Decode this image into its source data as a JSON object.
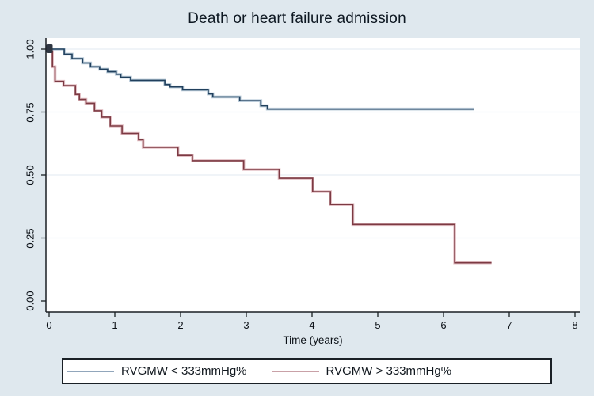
{
  "title": "Death or heart failure admission",
  "axes": {
    "x_label": "Time (years)",
    "x_tick_labels": [
      "0",
      "1",
      "2",
      "3",
      "4",
      "5",
      "6",
      "7",
      "8"
    ],
    "y_tick_labels": [
      "0.00",
      "0.25",
      "0.50",
      "0.75",
      "1.00"
    ]
  },
  "legend": {
    "items": [
      {
        "label": "RVGMW < 333mmHg%",
        "swatch_color": "#91a6bb"
      },
      {
        "label": "RVGMW > 333mmHg%",
        "swatch_color": "#c9a1a7"
      }
    ]
  },
  "colors": {
    "background": "#dfe8ee",
    "plot_background": "#ffffff",
    "gridline": "#e8eef3",
    "axis": "#1a1f24",
    "series_low_core": "#21405d",
    "series_low_halo": "#b4c6d6",
    "series_high_core": "#7c3a43",
    "series_high_halo": "#e0b9bf",
    "start_marker": "#2f3642"
  },
  "chart_data": {
    "type": "line",
    "subtype": "kaplan-meier-step",
    "title": "Death or heart failure admission",
    "xlabel": "Time (years)",
    "ylabel": "",
    "xlim": [
      0,
      8
    ],
    "ylim": [
      0.0,
      1.0
    ],
    "x_ticks": [
      0,
      1,
      2,
      3,
      4,
      5,
      6,
      7,
      8
    ],
    "y_ticks": [
      0.0,
      0.25,
      0.5,
      0.75,
      1.0
    ],
    "grid": "horizontal-major",
    "legend_position": "bottom",
    "series": [
      {
        "name": "RVGMW < 333mmHg%",
        "color_core": "#21405d",
        "color_halo": "#b4c6d6",
        "end_time": 6.47,
        "points": [
          [
            0.0,
            1.0
          ],
          [
            0.23,
            0.98
          ],
          [
            0.35,
            0.962
          ],
          [
            0.51,
            0.945
          ],
          [
            0.63,
            0.93
          ],
          [
            0.77,
            0.92
          ],
          [
            0.89,
            0.91
          ],
          [
            1.02,
            0.9
          ],
          [
            1.09,
            0.888
          ],
          [
            1.24,
            0.876
          ],
          [
            1.76,
            0.859
          ],
          [
            1.84,
            0.85
          ],
          [
            2.03,
            0.838
          ],
          [
            2.42,
            0.822
          ],
          [
            2.49,
            0.81
          ],
          [
            2.9,
            0.795
          ],
          [
            3.22,
            0.775
          ],
          [
            3.32,
            0.762
          ]
        ]
      },
      {
        "name": "RVGMW > 333mmHg%",
        "color_core": "#7c3a43",
        "color_halo": "#e0b9bf",
        "end_time": 6.73,
        "points": [
          [
            0.0,
            1.0
          ],
          [
            0.05,
            0.93
          ],
          [
            0.09,
            0.872
          ],
          [
            0.22,
            0.855
          ],
          [
            0.4,
            0.82
          ],
          [
            0.46,
            0.8
          ],
          [
            0.56,
            0.785
          ],
          [
            0.69,
            0.755
          ],
          [
            0.8,
            0.73
          ],
          [
            0.93,
            0.695
          ],
          [
            1.11,
            0.665
          ],
          [
            1.36,
            0.64
          ],
          [
            1.43,
            0.61
          ],
          [
            1.96,
            0.578
          ],
          [
            2.18,
            0.557
          ],
          [
            2.96,
            0.522
          ],
          [
            3.5,
            0.487
          ],
          [
            4.01,
            0.434
          ],
          [
            4.28,
            0.383
          ],
          [
            4.62,
            0.304
          ],
          [
            6.17,
            0.152
          ]
        ]
      }
    ]
  }
}
